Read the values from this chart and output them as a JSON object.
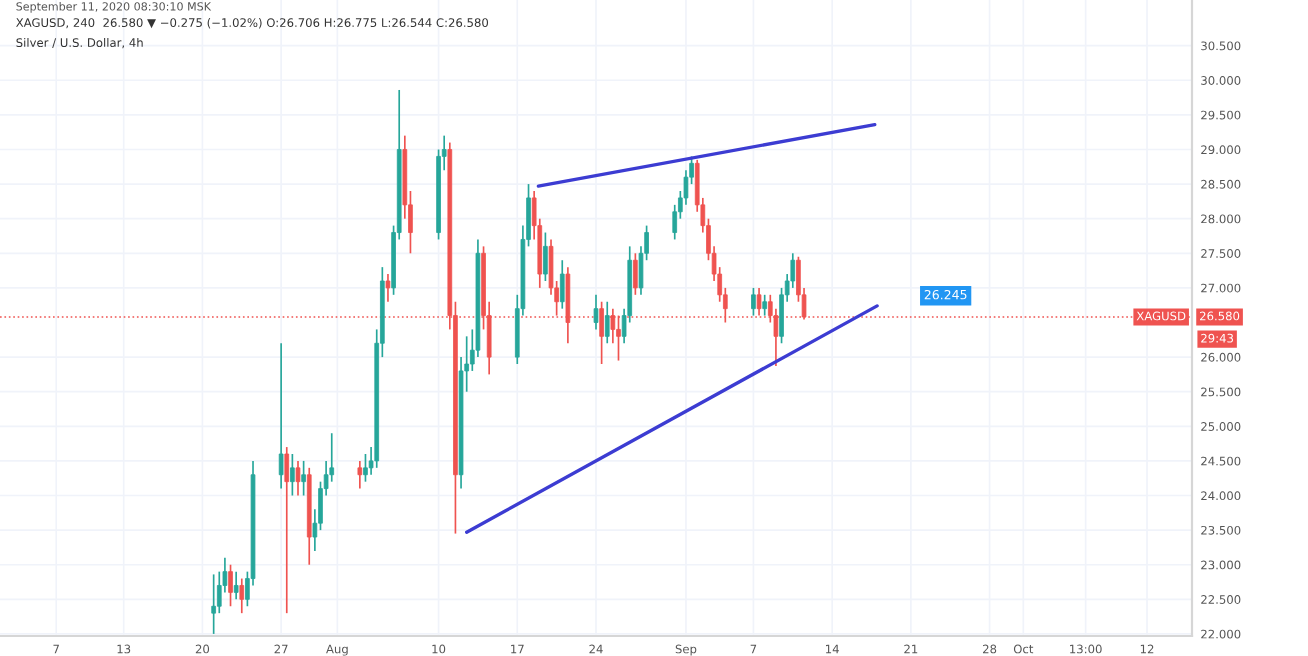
{
  "chart_data": {
    "type": "candlestick",
    "title": "XAGUSD, 240  26.580 ▼ −0.275 (−1.02%) O:26.706 H:26.775 L:26.544 C:26.580",
    "subtitle": "Silver / U.S. Dollar, 4h",
    "annotations": [
      "September 11, 2020 08:30:10 MSK",
      "XAGUSD",
      "29:43",
      "26.245"
    ],
    "xlim": [
      "2020-07-02",
      "2020-10-16"
    ],
    "ylim": [
      21.97,
      31.16
    ],
    "xticks": [
      {
        "value": "2020-07-07",
        "label": "7"
      },
      {
        "value": "2020-07-13",
        "label": "13"
      },
      {
        "value": "2020-07-20",
        "label": "20"
      },
      {
        "value": "2020-07-27",
        "label": "27"
      },
      {
        "value": "2020-08-01",
        "label": "Aug"
      },
      {
        "value": "2020-08-10",
        "label": "10"
      },
      {
        "value": "2020-08-17",
        "label": "17"
      },
      {
        "value": "2020-08-24",
        "label": "24"
      },
      {
        "value": "2020-09-01",
        "label": "Sep"
      },
      {
        "value": "2020-09-07",
        "label": "7"
      },
      {
        "value": "2020-09-14",
        "label": "14"
      },
      {
        "value": "2020-09-21",
        "label": "21"
      },
      {
        "value": "2020-09-28",
        "label": "28"
      },
      {
        "value": "2020-10-01",
        "label": "Oct"
      },
      {
        "value": "2020-10-06T13:00",
        "label": "13:00"
      },
      {
        "value": "2020-10-12",
        "label": "12"
      }
    ],
    "yticks": [
      {
        "value": 22,
        "label": "22.000"
      },
      {
        "value": 22.5,
        "label": "22.500"
      },
      {
        "value": 23,
        "label": "23.000"
      },
      {
        "value": 23.5,
        "label": "23.500"
      },
      {
        "value": 24,
        "label": "24.000"
      },
      {
        "value": 24.5,
        "label": "24.500"
      },
      {
        "value": 25,
        "label": "25.000"
      },
      {
        "value": 25.5,
        "label": "25.500"
      },
      {
        "value": 26,
        "label": "26.000"
      },
      {
        "value": 27,
        "label": "27.000"
      },
      {
        "value": 27.5,
        "label": "27.500"
      },
      {
        "value": 28,
        "label": "28.000"
      },
      {
        "value": 28.5,
        "label": "28.500"
      },
      {
        "value": 29,
        "label": "29.000"
      },
      {
        "value": 29.5,
        "label": "29.500"
      },
      {
        "value": 30,
        "label": "30.000"
      },
      {
        "value": 30.5,
        "label": "30.500"
      }
    ],
    "grid": true,
    "ref_lines": [
      {
        "axis": "y",
        "value": 26.58,
        "label": "26.580",
        "color": "#ef5350",
        "line_style": "dotted"
      }
    ],
    "series": [
      {
        "colors": [
          "#26a69a",
          "#26a69a",
          "#26a69a",
          "#ef5350",
          "#26a69a",
          "#ef5350",
          "#26a69a",
          "#26a69a",
          "#26a69a",
          "#ef5350",
          "#26a69a",
          "#ef5350",
          "#26a69a",
          "#ef5350",
          "#26a69a",
          "#26a69a",
          "#26a69a",
          "#26a69a",
          "#ef5350",
          "#26a69a",
          "#26a69a",
          "#26a69a",
          "#26a69a",
          "#ef5350",
          "#26a69a",
          "#26a69a",
          "#ef5350",
          "#ef5350",
          "#26a69a",
          "#26a69a",
          "#ef5350",
          "#ef5350",
          "#26a69a",
          "#26a69a",
          "#26a69a",
          "#26a69a",
          "#ef5350",
          "#ef5350",
          "#26a69a",
          "#26a69a",
          "#26a69a",
          "#ef5350",
          "#ef5350",
          "#26a69a",
          "#ef5350",
          "#ef5350",
          "#26a69a",
          "#ef5350",
          "#26a69a",
          "#ef5350",
          "#26a69a",
          "#ef5350",
          "#ef5350",
          "#26a69a",
          "#26a69a",
          "#ef5350",
          "#26a69a",
          "#26a69a",
          "#26a69a",
          "#26a69a",
          "#26a69a",
          "#26a69a",
          "#ef5350",
          "#ef5350",
          "#ef5350",
          "#ef5350",
          "#ef5350",
          "#ef5350",
          "#26a69a",
          "#ef5350",
          "#26a69a",
          "#ef5350",
          "#ef5350",
          "#26a69a",
          "#26a69a",
          "#26a69a",
          "#ef5350",
          "#ef5350"
        ],
        "x": [
          "2020-07-21T00:00",
          "2020-07-21T12:00",
          "2020-07-22T00:00",
          "2020-07-22T12:00",
          "2020-07-23T00:00",
          "2020-07-23T12:00",
          "2020-07-24T00:00",
          "2020-07-24T12:00",
          "2020-07-27T00:00",
          "2020-07-27T12:00",
          "2020-07-28T00:00",
          "2020-07-28T12:00",
          "2020-07-29T00:00",
          "2020-07-29T12:00",
          "2020-07-30T00:00",
          "2020-07-30T12:00",
          "2020-07-31T00:00",
          "2020-07-31T12:00",
          "2020-08-03T00:00",
          "2020-08-03T12:00",
          "2020-08-04T00:00",
          "2020-08-04T12:00",
          "2020-08-05T00:00",
          "2020-08-05T12:00",
          "2020-08-06T00:00",
          "2020-08-06T12:00",
          "2020-08-07T00:00",
          "2020-08-07T12:00",
          "2020-08-10T00:00",
          "2020-08-10T12:00",
          "2020-08-11T00:00",
          "2020-08-11T12:00",
          "2020-08-12T00:00",
          "2020-08-12T12:00",
          "2020-08-13T00:00",
          "2020-08-13T12:00",
          "2020-08-14T00:00",
          "2020-08-14T12:00",
          "2020-08-17T00:00",
          "2020-08-17T12:00",
          "2020-08-18T00:00",
          "2020-08-18T12:00",
          "2020-08-19T00:00",
          "2020-08-19T12:00",
          "2020-08-20T00:00",
          "2020-08-20T12:00",
          "2020-08-21T00:00",
          "2020-08-21T12:00",
          "2020-08-24T00:00",
          "2020-08-24T12:00",
          "2020-08-25T00:00",
          "2020-08-25T12:00",
          "2020-08-26T00:00",
          "2020-08-26T12:00",
          "2020-08-27T00:00",
          "2020-08-27T12:00",
          "2020-08-28T00:00",
          "2020-08-28T12:00",
          "2020-08-31T00:00",
          "2020-08-31T12:00",
          "2020-09-01T00:00",
          "2020-09-01T12:00",
          "2020-09-02T00:00",
          "2020-09-02T12:00",
          "2020-09-03T00:00",
          "2020-09-03T12:00",
          "2020-09-04T00:00",
          "2020-09-04T12:00",
          "2020-09-07T00:00",
          "2020-09-07T12:00",
          "2020-09-08T00:00",
          "2020-09-08T12:00",
          "2020-09-09T00:00",
          "2020-09-09T12:00",
          "2020-09-10T00:00",
          "2020-09-10T12:00",
          "2020-09-11T00:00",
          "2020-09-11T12:00"
        ],
        "ohlc": [
          [
            22.3,
            22.86,
            22.0,
            22.4
          ],
          [
            22.4,
            22.9,
            22.3,
            22.7
          ],
          [
            22.7,
            23.1,
            22.6,
            22.9
          ],
          [
            22.9,
            23.0,
            22.4,
            22.6
          ],
          [
            22.6,
            22.9,
            22.5,
            22.7
          ],
          [
            22.7,
            22.8,
            22.3,
            22.5
          ],
          [
            22.5,
            22.9,
            22.4,
            22.8
          ],
          [
            22.8,
            24.5,
            22.7,
            24.3
          ],
          [
            24.3,
            26.2,
            24.1,
            24.6
          ],
          [
            24.6,
            24.7,
            22.3,
            24.2
          ],
          [
            24.2,
            24.6,
            24.0,
            24.4
          ],
          [
            24.4,
            24.5,
            24.0,
            24.2
          ],
          [
            24.2,
            24.5,
            24.0,
            24.3
          ],
          [
            24.3,
            24.4,
            23.0,
            23.4
          ],
          [
            23.4,
            23.8,
            23.2,
            23.6
          ],
          [
            23.6,
            24.2,
            23.5,
            24.1
          ],
          [
            24.1,
            24.5,
            24.0,
            24.3
          ],
          [
            24.3,
            24.9,
            24.2,
            24.4
          ],
          [
            24.4,
            24.5,
            24.1,
            24.3
          ],
          [
            24.3,
            24.6,
            24.2,
            24.4
          ],
          [
            24.4,
            24.7,
            24.3,
            24.5
          ],
          [
            24.5,
            26.4,
            24.4,
            26.2
          ],
          [
            26.2,
            27.3,
            26.0,
            27.1
          ],
          [
            27.1,
            27.2,
            26.8,
            27.0
          ],
          [
            27.0,
            27.9,
            26.9,
            27.8
          ],
          [
            27.8,
            29.86,
            27.7,
            29.0
          ],
          [
            29.0,
            29.2,
            28.0,
            28.2
          ],
          [
            28.2,
            28.4,
            27.5,
            27.8
          ],
          [
            27.8,
            29.0,
            27.7,
            28.9
          ],
          [
            28.9,
            29.2,
            28.7,
            29.0
          ],
          [
            29.0,
            29.1,
            26.4,
            26.6
          ],
          [
            26.6,
            26.8,
            23.45,
            24.3
          ],
          [
            24.3,
            26.0,
            24.1,
            25.8
          ],
          [
            25.8,
            26.3,
            25.5,
            25.9
          ],
          [
            25.9,
            26.4,
            25.8,
            26.1
          ],
          [
            26.1,
            27.7,
            26.0,
            27.5
          ],
          [
            27.5,
            27.6,
            26.4,
            26.6
          ],
          [
            26.6,
            26.8,
            25.75,
            26.0
          ],
          [
            26.0,
            26.9,
            25.9,
            26.7
          ],
          [
            26.7,
            27.9,
            26.6,
            27.7
          ],
          [
            27.7,
            28.5,
            27.6,
            28.3
          ],
          [
            28.3,
            28.4,
            27.7,
            27.9
          ],
          [
            27.9,
            28.0,
            27.0,
            27.2
          ],
          [
            27.2,
            27.8,
            27.1,
            27.6
          ],
          [
            27.6,
            27.7,
            26.9,
            27.0
          ],
          [
            27.0,
            27.1,
            26.6,
            26.8
          ],
          [
            26.8,
            27.4,
            26.7,
            27.2
          ],
          [
            27.2,
            27.3,
            26.2,
            26.5
          ],
          [
            26.5,
            26.9,
            26.4,
            26.7
          ],
          [
            26.7,
            26.8,
            25.9,
            26.3
          ],
          [
            26.3,
            26.8,
            26.2,
            26.6
          ],
          [
            26.6,
            26.7,
            26.2,
            26.4
          ],
          [
            26.4,
            26.6,
            25.95,
            26.3
          ],
          [
            26.3,
            26.7,
            26.2,
            26.6
          ],
          [
            26.6,
            27.6,
            26.5,
            27.4
          ],
          [
            27.4,
            27.5,
            26.9,
            27.0
          ],
          [
            27.0,
            27.6,
            26.9,
            27.5
          ],
          [
            27.5,
            27.9,
            27.4,
            27.8
          ],
          [
            27.8,
            28.2,
            27.7,
            28.1
          ],
          [
            28.1,
            28.4,
            28.0,
            28.3
          ],
          [
            28.3,
            28.7,
            28.2,
            28.6
          ],
          [
            28.6,
            28.9,
            28.5,
            28.8
          ],
          [
            28.8,
            28.85,
            28.1,
            28.2
          ],
          [
            28.2,
            28.3,
            27.8,
            27.9
          ],
          [
            27.9,
            28.0,
            27.4,
            27.5
          ],
          [
            27.5,
            27.6,
            27.1,
            27.2
          ],
          [
            27.2,
            27.3,
            26.8,
            26.9
          ],
          [
            26.9,
            27.0,
            26.5,
            26.7
          ],
          [
            26.7,
            27.0,
            26.6,
            26.9
          ],
          [
            26.9,
            27.0,
            26.6,
            26.7
          ],
          [
            26.7,
            26.9,
            26.6,
            26.8
          ],
          [
            26.8,
            26.9,
            26.5,
            26.6
          ],
          [
            26.6,
            26.7,
            25.87,
            26.3
          ],
          [
            26.3,
            27.0,
            26.2,
            26.9
          ],
          [
            26.9,
            27.2,
            26.8,
            27.1
          ],
          [
            27.1,
            27.5,
            27.0,
            27.4
          ],
          [
            27.4,
            27.45,
            26.8,
            26.9
          ],
          [
            26.9,
            27.0,
            26.544,
            26.58
          ]
        ]
      },
      {
        "type": "line",
        "color": "#3c3cd2",
        "x": [
          "2020-08-18T21:00",
          "2020-09-17T19:00"
        ],
        "values": [
          28.47,
          29.36
        ]
      },
      {
        "type": "line",
        "color": "#3c3cd2",
        "x": [
          "2020-08-12T12:00",
          "2020-09-18T00:00"
        ],
        "values": [
          23.47,
          26.74
        ]
      }
    ]
  }
}
